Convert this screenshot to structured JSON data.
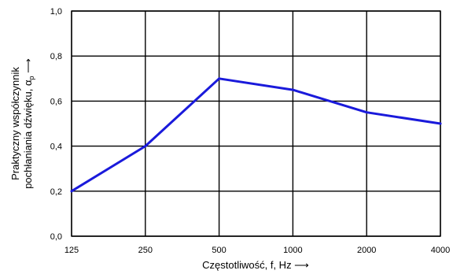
{
  "chart_data": {
    "type": "line",
    "categories": [
      "125",
      "250",
      "500",
      "1000",
      "2000",
      "4000"
    ],
    "series": [
      {
        "values": [
          0.2,
          0.4,
          0.7,
          0.65,
          0.55,
          0.5
        ]
      }
    ],
    "ylim": [
      0,
      1.0
    ],
    "yticks": [
      "0,0",
      "0,2",
      "0,4",
      "0,6",
      "0,8",
      "1,0"
    ],
    "xlabel": "Częstotliwość, f, Hz ⟶",
    "ylabel_line1": "Praktyczny współczynnik",
    "ylabel_line2": "pochłaniania dźwięku, α",
    "ylabel_sub": "p",
    "ylabel_arrow": " ⟶",
    "grid": true,
    "colors": {
      "series": "#1a1adb",
      "grid": "#000000"
    }
  }
}
